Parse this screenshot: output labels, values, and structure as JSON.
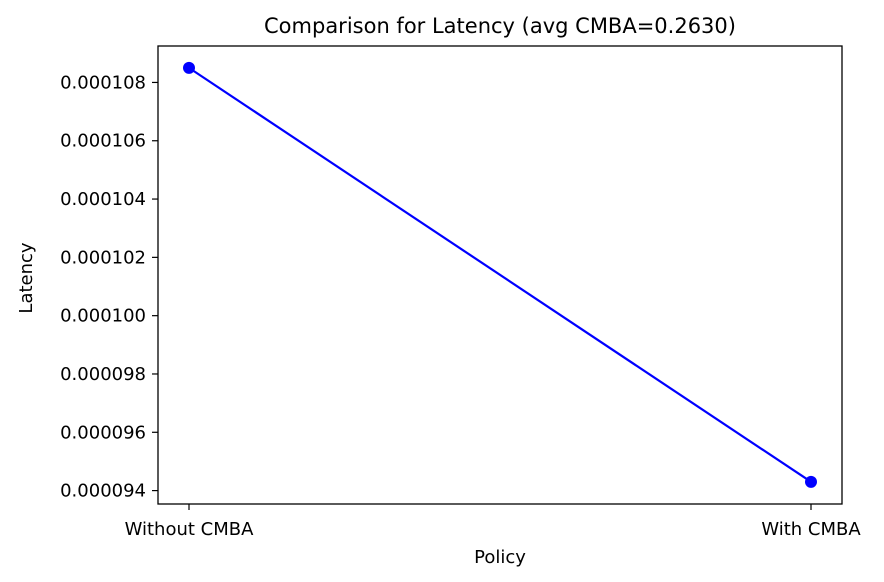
{
  "chart_data": {
    "type": "line",
    "title": "Comparison for Latency (avg CMBA=0.2630)",
    "xlabel": "Policy",
    "ylabel": "Latency",
    "categories": [
      "Without CMBA",
      "With CMBA"
    ],
    "series": [
      {
        "values": [
          0.0001085,
          9.43e-05
        ],
        "color": "#0000ff",
        "marker": "circle"
      }
    ],
    "yticks": [
      9.4e-05,
      9.6e-05,
      9.8e-05,
      0.0001,
      0.000102,
      0.000104,
      0.000106,
      0.000108
    ],
    "ytick_labels": [
      "0.000094",
      "0.000096",
      "0.000098",
      "0.000100",
      "0.000102",
      "0.000104",
      "0.000106",
      "0.000108"
    ],
    "ylim": [
      9.354e-05,
      0.00010925
    ],
    "grid": false,
    "legend": "none"
  }
}
